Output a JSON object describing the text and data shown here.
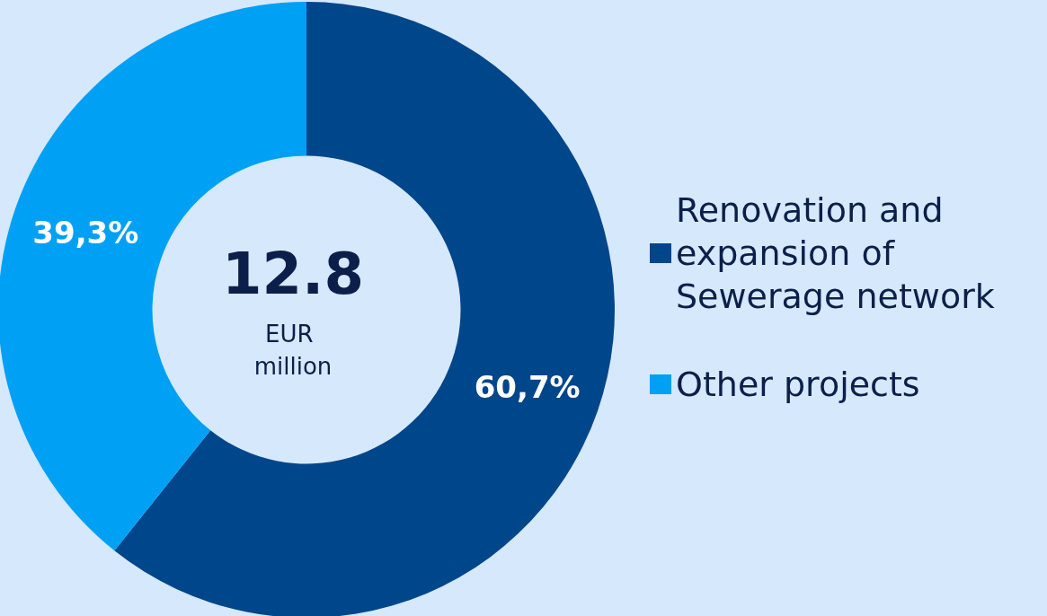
{
  "chart_data": {
    "type": "donut",
    "categories": [
      "Renovation and expansion of Sewerage network",
      "Other projects"
    ],
    "values": [
      60.7,
      39.3
    ],
    "colors": [
      "#00468b",
      "#00a0f5"
    ],
    "value_labels": [
      "60,7%",
      "39,3%"
    ],
    "annotations": [
      "12.8",
      "EUR million"
    ],
    "legend": "right"
  }
}
